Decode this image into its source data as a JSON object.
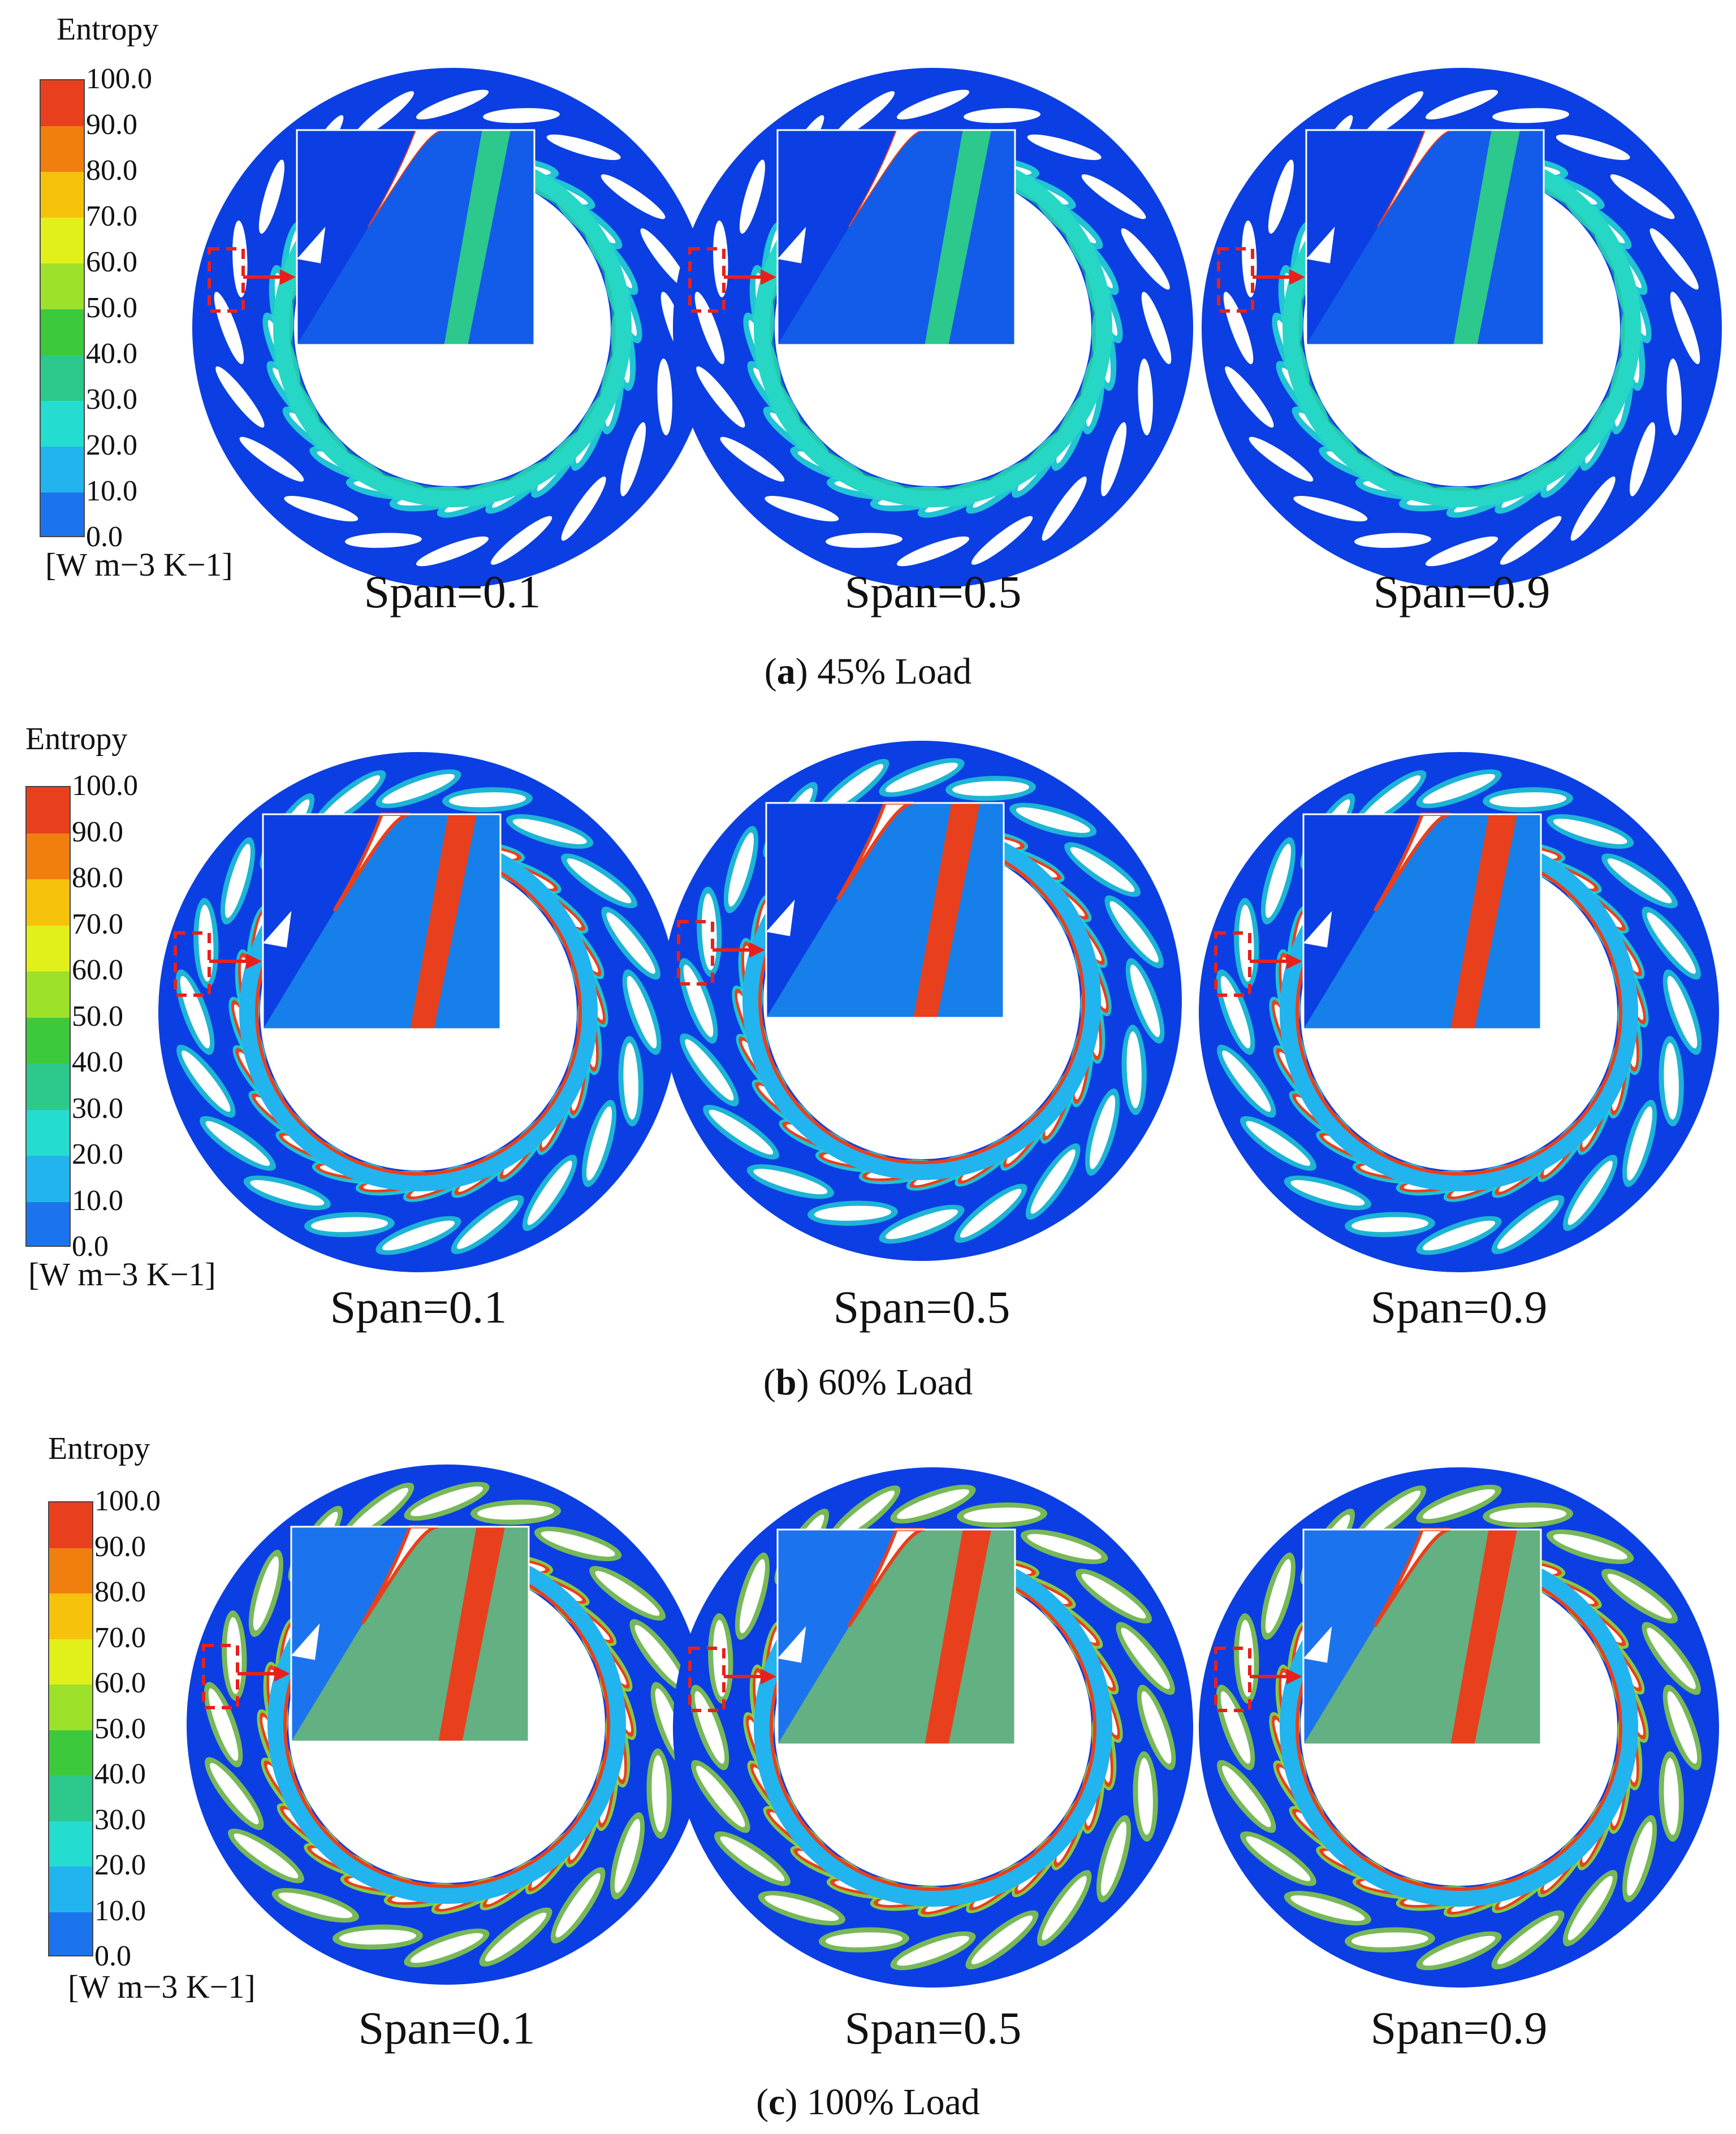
{
  "colorbar": {
    "title": "Entropy",
    "ticks": [
      "100.0",
      "90.0",
      "80.0",
      "70.0",
      "60.0",
      "50.0",
      "40.0",
      "30.0",
      "20.0",
      "10.0",
      "0.0"
    ],
    "unit": "[W m−3 K−1]",
    "colors": [
      "#e8401c",
      "#f07f10",
      "#f6c20c",
      "#e2f01a",
      "#9ee12a",
      "#3cca3c",
      "#2cc88c",
      "#25dcd0",
      "#22b4ee",
      "#1b74ee",
      "#0b3fe3"
    ]
  },
  "rows": [
    {
      "id": "a",
      "caption_letter": "a",
      "caption_text": "45% Load",
      "panels": [
        {
          "label": "Span=0.1",
          "intensity": 0
        },
        {
          "label": "Span=0.5",
          "intensity": 0
        },
        {
          "label": "Span=0.9",
          "intensity": 0
        }
      ]
    },
    {
      "id": "b",
      "caption_letter": "b",
      "caption_text": "60% Load",
      "panels": [
        {
          "label": "Span=0.1",
          "intensity": 1
        },
        {
          "label": "Span=0.5",
          "intensity": 1
        },
        {
          "label": "Span=0.9",
          "intensity": 1
        }
      ]
    },
    {
      "id": "c",
      "caption_letter": "c",
      "caption_text": "100% Load",
      "panels": [
        {
          "label": "Span=0.1",
          "intensity": 2
        },
        {
          "label": "Span=0.5",
          "intensity": 2
        },
        {
          "label": "Span=0.9",
          "intensity": 2
        }
      ]
    }
  ]
}
